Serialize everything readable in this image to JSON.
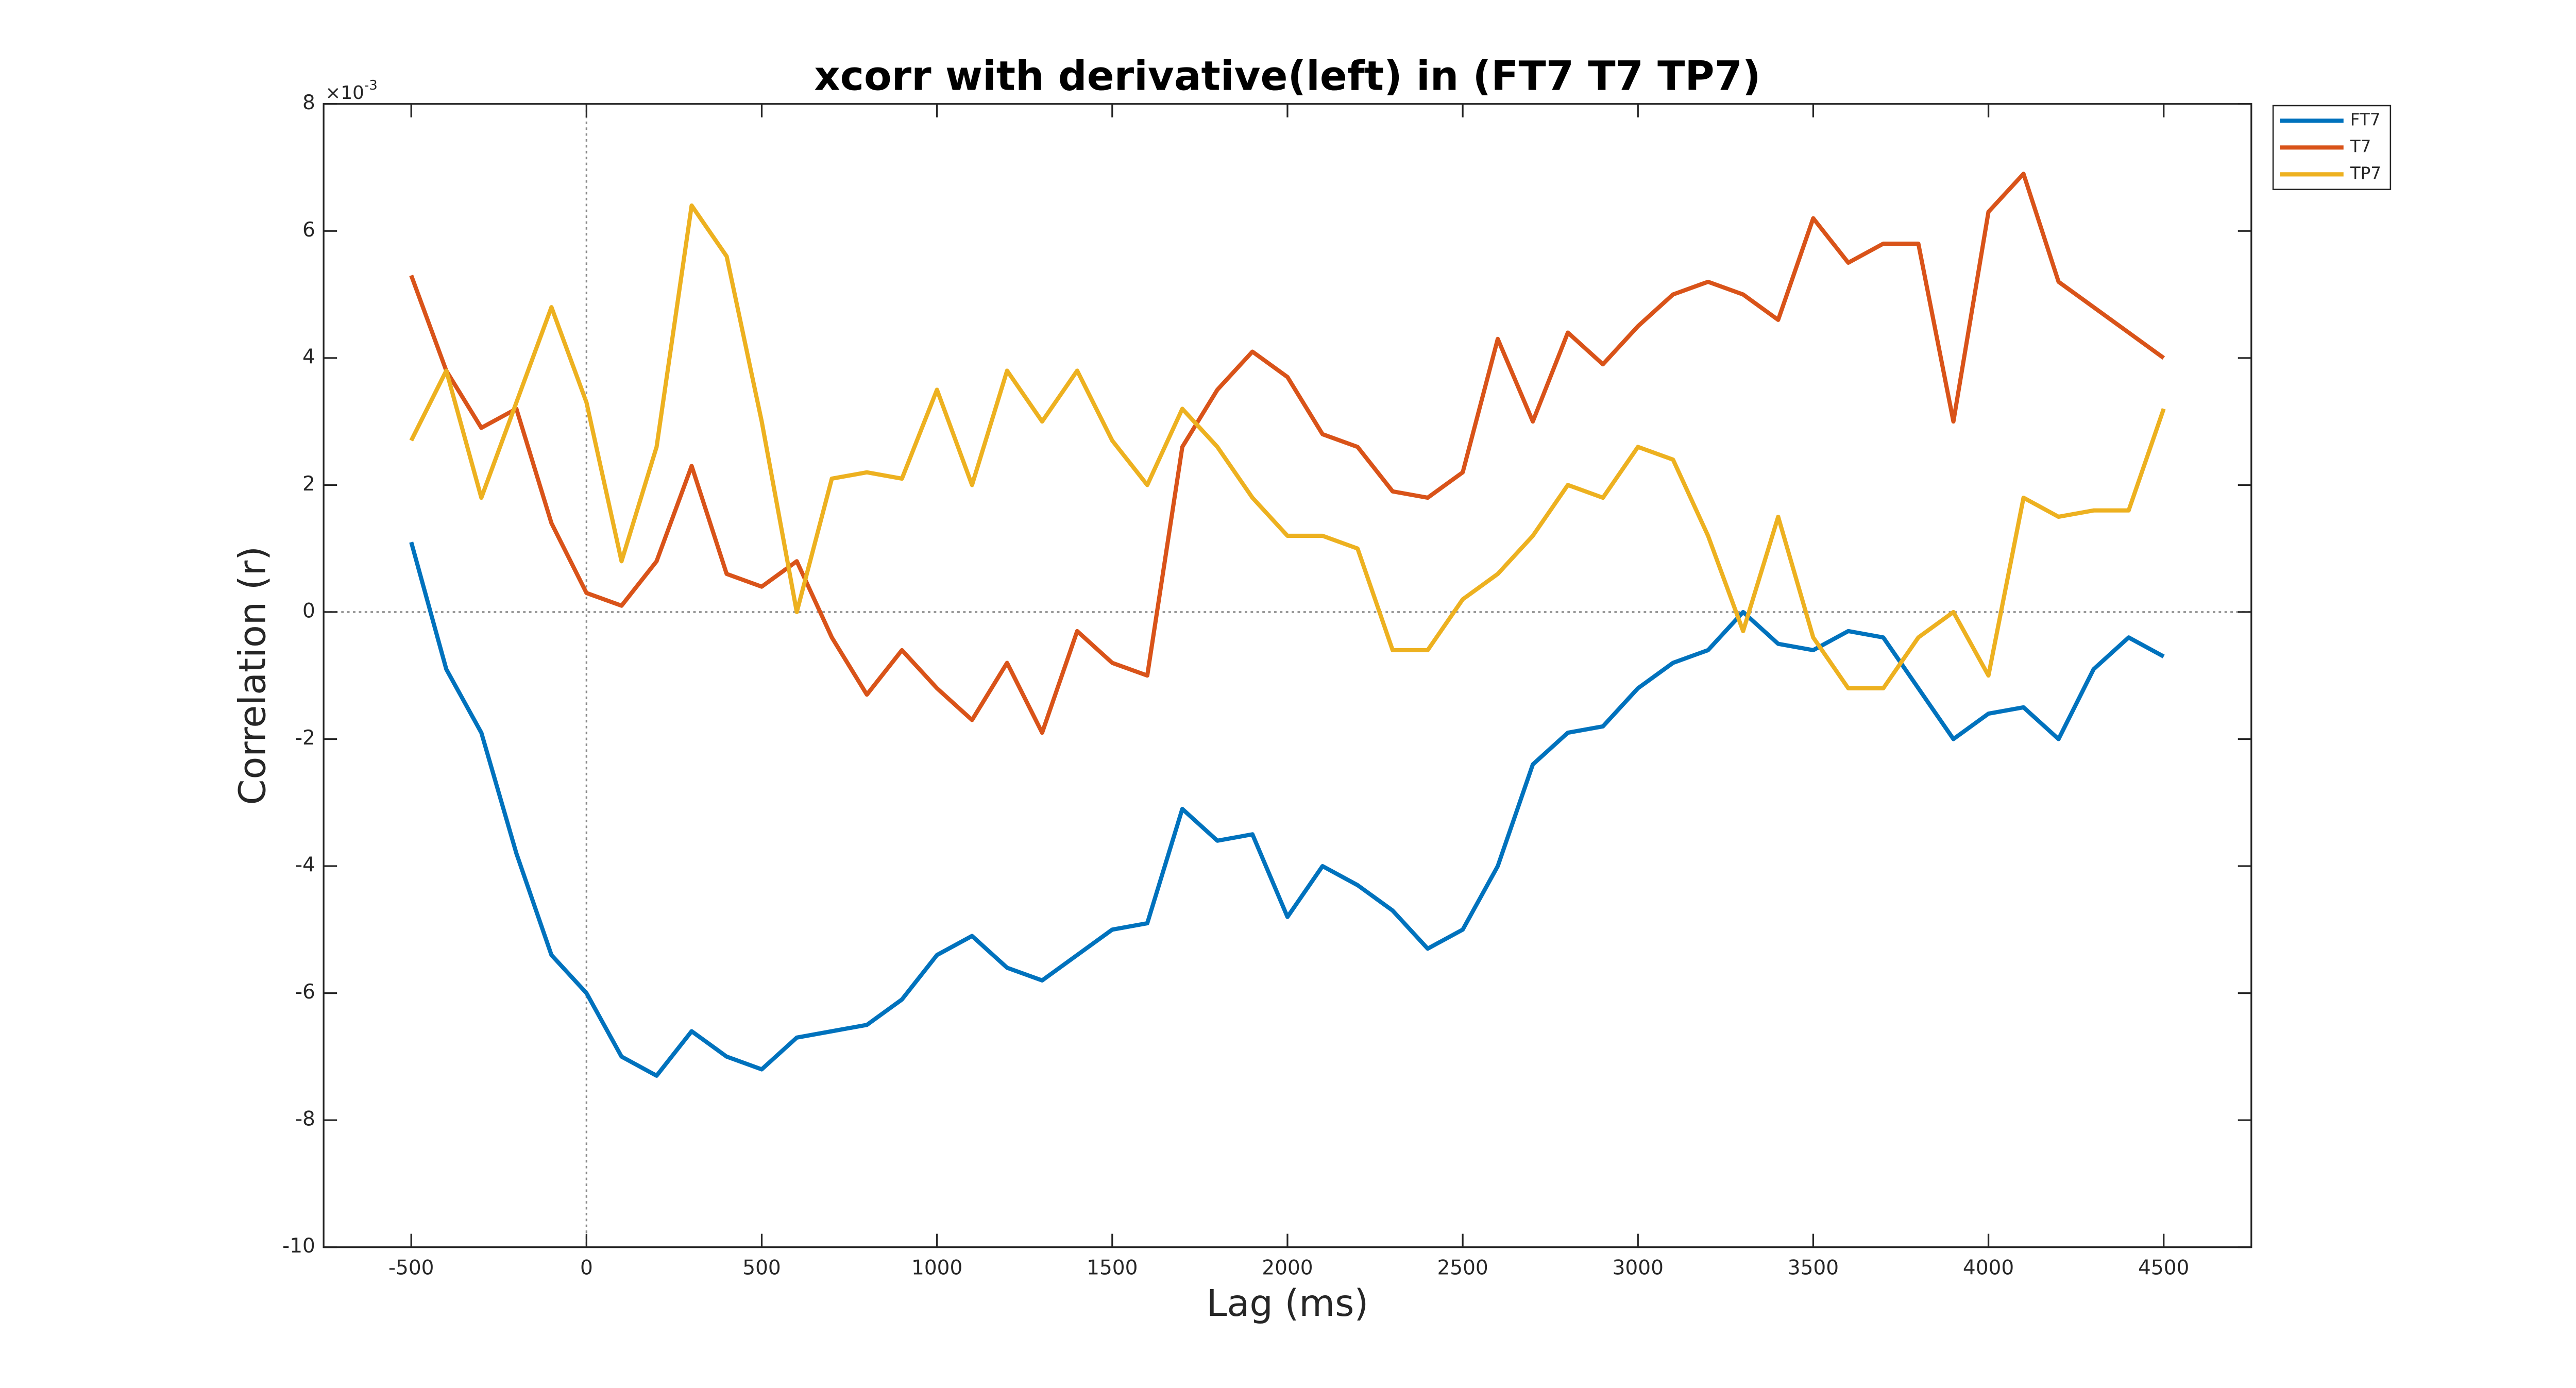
{
  "chart_data": {
    "type": "line",
    "title": "xcorr with derivative(left) in (FT7 T7 TP7)",
    "xlabel": "Lag (ms)",
    "ylabel": "Correlation (r)",
    "y_exponent": {
      "base": "×10",
      "power": "-3"
    },
    "x": [
      -500,
      -400,
      -300,
      -200,
      -100,
      0,
      100,
      200,
      300,
      400,
      500,
      600,
      700,
      800,
      900,
      1000,
      1100,
      1200,
      1300,
      1400,
      1500,
      1600,
      1700,
      1800,
      1900,
      2000,
      2100,
      2200,
      2300,
      2400,
      2500,
      2600,
      2700,
      2800,
      2900,
      3000,
      3100,
      3200,
      3300,
      3400,
      3500,
      3600,
      3700,
      3800,
      3900,
      4000,
      4100,
      4200,
      4300,
      4400,
      4500
    ],
    "series": [
      {
        "name": "FT7",
        "color": "#0072bd",
        "values": [
          1.1,
          -0.9,
          -1.9,
          -3.8,
          -5.4,
          -6.0,
          -7.0,
          -7.3,
          -6.6,
          -7.0,
          -7.2,
          -6.7,
          -6.6,
          -6.5,
          -6.1,
          -5.4,
          -5.1,
          -5.6,
          -5.8,
          -5.4,
          -5.0,
          -4.9,
          -3.1,
          -3.6,
          -3.5,
          -4.8,
          -4.0,
          -4.3,
          -4.7,
          -5.3,
          -5.0,
          -4.0,
          -2.4,
          -1.9,
          -1.8,
          -1.2,
          -0.8,
          -0.6,
          0.0,
          -0.5,
          -0.6,
          -0.3,
          -0.4,
          -1.2,
          -2.0,
          -1.6,
          -1.5,
          -2.0,
          -0.9,
          -0.4,
          -0.7
        ]
      },
      {
        "name": "T7",
        "color": "#d95319",
        "values": [
          5.3,
          3.8,
          2.9,
          3.2,
          1.4,
          0.3,
          0.1,
          0.8,
          2.3,
          0.6,
          0.4,
          0.8,
          -0.4,
          -1.3,
          -0.6,
          -1.2,
          -1.7,
          -0.8,
          -1.9,
          -0.3,
          -0.8,
          -1.0,
          2.6,
          3.5,
          4.1,
          3.7,
          2.8,
          2.6,
          1.9,
          1.8,
          2.2,
          4.3,
          3.0,
          4.4,
          3.9,
          4.5,
          5.0,
          5.2,
          5.0,
          4.6,
          6.2,
          5.5,
          5.8,
          5.8,
          3.0,
          6.3,
          6.9,
          5.2,
          4.8,
          4.4,
          4.0
        ]
      },
      {
        "name": "TP7",
        "color": "#edb120",
        "values": [
          2.7,
          3.8,
          1.8,
          3.3,
          4.8,
          3.3,
          0.8,
          2.6,
          6.4,
          5.6,
          3.0,
          0.0,
          2.1,
          2.2,
          2.1,
          3.5,
          2.0,
          3.8,
          3.0,
          3.8,
          2.7,
          2.0,
          3.2,
          2.6,
          1.8,
          1.2,
          1.2,
          1.0,
          -0.6,
          -0.6,
          0.2,
          0.6,
          1.2,
          2.0,
          1.8,
          2.6,
          2.4,
          1.2,
          -0.3,
          1.5,
          -0.4,
          -1.2,
          -1.2,
          -0.4,
          0.0,
          -1.0,
          1.8,
          1.5,
          1.6,
          1.6,
          3.2
        ]
      }
    ],
    "xlim": [
      -750,
      4750
    ],
    "xticks": [
      -500,
      0,
      500,
      1000,
      1500,
      2000,
      2500,
      3000,
      3500,
      4000,
      4500
    ],
    "ylim": [
      -10,
      8
    ],
    "yticks": [
      -10,
      -8,
      -6,
      -4,
      -2,
      0,
      2,
      4,
      6,
      8
    ],
    "reference_lines": {
      "x": 0,
      "y": 0
    },
    "legend": "northeastoutside",
    "grid": false
  }
}
